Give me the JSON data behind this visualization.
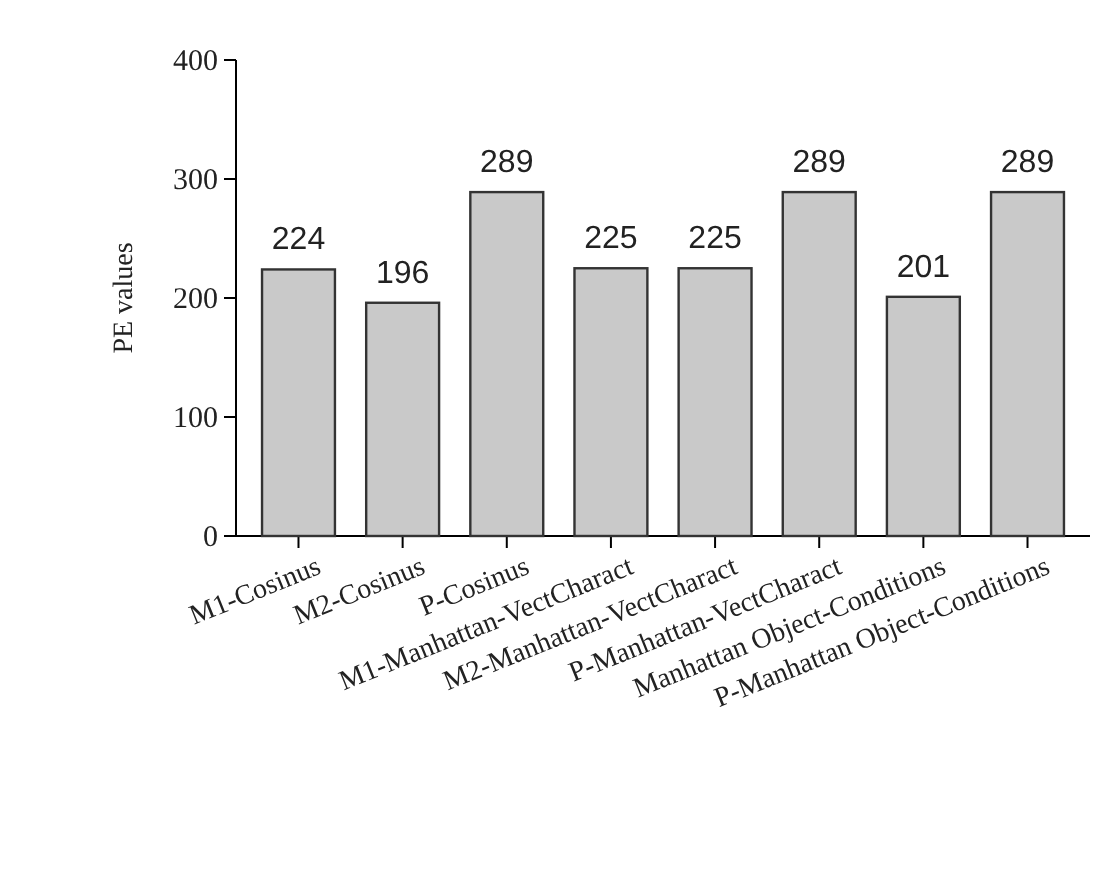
{
  "chart_data": {
    "type": "bar",
    "ylabel": "PE values",
    "categories": [
      "M1-Cosinus",
      "M2-Cosinus",
      "P-Cosinus",
      "M1-Manhattan-VectCharact",
      "M2-Manhattan-VectCharact",
      "P-Manhattan-VectCharact",
      "Manhattan Object-Conditions",
      "P-Manhattan Object-Conditions"
    ],
    "values": [
      224,
      196,
      289,
      225,
      225,
      289,
      201,
      289
    ],
    "color": "#c9c9c9",
    "ylim": [
      0,
      400
    ],
    "yticks": [
      0,
      100,
      200,
      300,
      400
    ],
    "data_labels": true,
    "grid": false
  }
}
